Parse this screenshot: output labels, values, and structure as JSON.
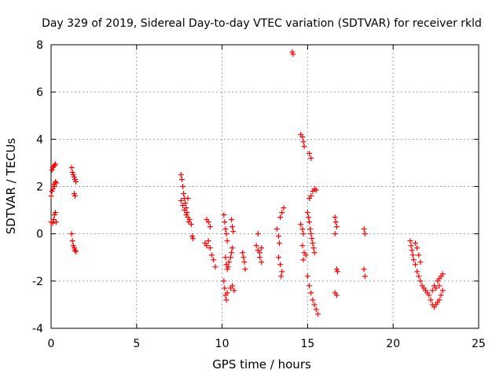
{
  "chart_data": {
    "type": "scatter",
    "title": "Day 329 of 2019, Sidereal Day-to-day VTEC variation (SDTVAR) for receiver rkld",
    "xlabel": "GPS time / hours",
    "ylabel": "SDTVAR / TECUs",
    "xlim": [
      0,
      25
    ],
    "ylim": [
      -4,
      8
    ],
    "xticks": [
      "0",
      "5",
      "10",
      "15",
      "20",
      "25"
    ],
    "yticks": [
      "-4",
      "-2",
      "0",
      "2",
      "4",
      "6",
      "8"
    ],
    "grid": true,
    "marker": "+",
    "marker_color": "#ff0000",
    "series": [
      {
        "points": [
          [
            0.0,
            1.6
          ],
          [
            0.05,
            1.8
          ],
          [
            0.1,
            1.9
          ],
          [
            0.15,
            2.1
          ],
          [
            0.2,
            2.0
          ],
          [
            0.25,
            2.2
          ],
          [
            0.3,
            2.15
          ],
          [
            0.05,
            2.7
          ],
          [
            0.1,
            2.8
          ],
          [
            0.15,
            2.85
          ],
          [
            0.2,
            2.9
          ],
          [
            0.25,
            2.95
          ],
          [
            0.0,
            0.5
          ],
          [
            0.1,
            0.45
          ],
          [
            0.15,
            0.6
          ],
          [
            0.2,
            0.8
          ],
          [
            0.25,
            0.9
          ],
          [
            0.3,
            0.5
          ],
          [
            1.2,
            2.8
          ],
          [
            1.25,
            2.6
          ],
          [
            1.3,
            2.5
          ],
          [
            1.35,
            2.4
          ],
          [
            1.4,
            2.3
          ],
          [
            1.45,
            2.2
          ],
          [
            1.35,
            1.7
          ],
          [
            1.4,
            1.6
          ],
          [
            1.2,
            0.0
          ],
          [
            1.25,
            -0.3
          ],
          [
            1.3,
            -0.5
          ],
          [
            1.35,
            -0.6
          ],
          [
            1.4,
            -0.7
          ],
          [
            1.45,
            -0.75
          ],
          [
            7.6,
            2.5
          ],
          [
            7.65,
            2.3
          ],
          [
            7.7,
            2.0
          ],
          [
            7.75,
            1.7
          ],
          [
            7.8,
            1.5
          ],
          [
            7.85,
            1.3
          ],
          [
            7.9,
            1.1
          ],
          [
            7.95,
            0.9
          ],
          [
            8.0,
            0.7
          ],
          [
            8.05,
            0.5
          ],
          [
            7.6,
            1.4
          ],
          [
            7.7,
            1.2
          ],
          [
            7.8,
            1.0
          ],
          [
            7.9,
            0.8
          ],
          [
            8.0,
            1.5
          ],
          [
            8.1,
            0.6
          ],
          [
            8.2,
            0.4
          ],
          [
            8.25,
            -0.1
          ],
          [
            8.3,
            -0.2
          ],
          [
            9.1,
            0.6
          ],
          [
            9.2,
            0.5
          ],
          [
            9.0,
            -0.4
          ],
          [
            9.1,
            -0.5
          ],
          [
            9.2,
            -0.3
          ],
          [
            9.3,
            -0.6
          ],
          [
            9.4,
            -0.9
          ],
          [
            9.5,
            -1.1
          ],
          [
            9.6,
            -1.4
          ],
          [
            9.3,
            0.3
          ],
          [
            10.1,
            0.8
          ],
          [
            10.15,
            0.5
          ],
          [
            10.2,
            0.2
          ],
          [
            10.25,
            0.0
          ],
          [
            10.3,
            -0.3
          ],
          [
            10.2,
            -1.0
          ],
          [
            10.25,
            -1.3
          ],
          [
            10.3,
            -1.5
          ],
          [
            10.35,
            -1.4
          ],
          [
            10.4,
            -1.2
          ],
          [
            10.5,
            -1.0
          ],
          [
            10.55,
            -0.8
          ],
          [
            10.6,
            -0.6
          ],
          [
            10.65,
            0.1
          ],
          [
            10.6,
            0.3
          ],
          [
            10.55,
            0.6
          ],
          [
            10.1,
            -2.0
          ],
          [
            10.15,
            -2.3
          ],
          [
            10.2,
            -2.6
          ],
          [
            10.25,
            -2.8
          ],
          [
            10.3,
            -2.5
          ],
          [
            10.5,
            -2.3
          ],
          [
            10.6,
            -2.2
          ],
          [
            10.7,
            -2.4
          ],
          [
            11.2,
            -0.8
          ],
          [
            11.25,
            -1.0
          ],
          [
            11.3,
            -1.2
          ],
          [
            11.35,
            -1.5
          ],
          [
            12.0,
            -0.5
          ],
          [
            12.1,
            -0.7
          ],
          [
            12.2,
            -0.8
          ],
          [
            12.3,
            -0.6
          ],
          [
            12.2,
            -1.0
          ],
          [
            12.3,
            -1.2
          ],
          [
            12.1,
            0.0
          ],
          [
            13.2,
            0.2
          ],
          [
            13.3,
            -0.1
          ],
          [
            13.35,
            -0.4
          ],
          [
            13.3,
            -1.0
          ],
          [
            13.4,
            -1.3
          ],
          [
            13.5,
            -1.6
          ],
          [
            13.45,
            -1.8
          ],
          [
            13.4,
            0.7
          ],
          [
            13.5,
            0.9
          ],
          [
            13.6,
            1.1
          ],
          [
            14.1,
            7.7
          ],
          [
            14.15,
            7.6
          ],
          [
            14.6,
            4.2
          ],
          [
            14.7,
            4.1
          ],
          [
            14.75,
            3.9
          ],
          [
            14.8,
            3.7
          ],
          [
            15.1,
            3.4
          ],
          [
            15.2,
            3.2
          ],
          [
            15.2,
            1.6
          ],
          [
            15.3,
            1.8
          ],
          [
            15.4,
            1.9
          ],
          [
            15.5,
            1.85
          ],
          [
            15.1,
            1.5
          ],
          [
            14.6,
            0.4
          ],
          [
            14.7,
            0.2
          ],
          [
            14.75,
            0.0
          ],
          [
            14.7,
            -0.5
          ],
          [
            14.8,
            -0.8
          ],
          [
            14.75,
            -1.1
          ],
          [
            14.9,
            -0.9
          ],
          [
            15.0,
            0.9
          ],
          [
            15.05,
            0.7
          ],
          [
            15.1,
            0.5
          ],
          [
            15.15,
            0.2
          ],
          [
            15.2,
            0.0
          ],
          [
            15.25,
            -0.2
          ],
          [
            15.3,
            -0.4
          ],
          [
            15.35,
            -0.6
          ],
          [
            15.4,
            -0.8
          ],
          [
            15.0,
            -1.8
          ],
          [
            15.1,
            -2.2
          ],
          [
            15.2,
            -2.5
          ],
          [
            15.3,
            -2.8
          ],
          [
            15.4,
            -3.0
          ],
          [
            15.5,
            -3.2
          ],
          [
            15.6,
            -3.4
          ],
          [
            16.6,
            0.7
          ],
          [
            16.65,
            0.5
          ],
          [
            16.7,
            0.3
          ],
          [
            16.6,
            0.0
          ],
          [
            16.7,
            -1.5
          ],
          [
            16.75,
            -1.6
          ],
          [
            16.6,
            -2.5
          ],
          [
            16.7,
            -2.6
          ],
          [
            18.3,
            0.2
          ],
          [
            18.35,
            0.0
          ],
          [
            18.3,
            -1.5
          ],
          [
            18.35,
            -1.8
          ],
          [
            21.0,
            -0.3
          ],
          [
            21.05,
            -0.5
          ],
          [
            21.1,
            -0.7
          ],
          [
            21.15,
            -0.9
          ],
          [
            21.2,
            -1.1
          ],
          [
            21.3,
            -1.3
          ],
          [
            21.4,
            -1.6
          ],
          [
            21.5,
            -1.8
          ],
          [
            21.6,
            -2.0
          ],
          [
            21.7,
            -2.2
          ],
          [
            21.8,
            -2.3
          ],
          [
            21.9,
            -2.4
          ],
          [
            22.0,
            -2.5
          ],
          [
            22.1,
            -2.6
          ],
          [
            22.2,
            -2.8
          ],
          [
            22.3,
            -3.0
          ],
          [
            22.4,
            -3.1
          ],
          [
            22.5,
            -3.0
          ],
          [
            22.6,
            -2.9
          ],
          [
            22.7,
            -2.8
          ],
          [
            22.8,
            -2.6
          ],
          [
            22.9,
            -2.4
          ],
          [
            22.7,
            -2.2
          ],
          [
            22.5,
            -2.3
          ],
          [
            22.3,
            -2.4
          ],
          [
            22.4,
            -2.2
          ],
          [
            22.6,
            -2.0
          ],
          [
            22.7,
            -1.9
          ],
          [
            22.8,
            -1.8
          ],
          [
            22.9,
            -1.7
          ],
          [
            21.3,
            -0.4
          ],
          [
            21.4,
            -0.6
          ],
          [
            21.5,
            -0.9
          ],
          [
            21.6,
            -1.2
          ]
        ]
      }
    ]
  }
}
